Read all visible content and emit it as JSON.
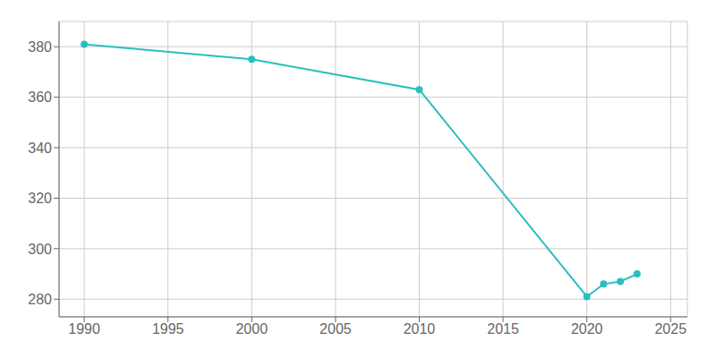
{
  "chart_data": {
    "type": "line",
    "x": [
      1990,
      2000,
      2010,
      2020,
      2021,
      2022,
      2023
    ],
    "values": [
      381,
      375,
      363,
      281,
      286,
      287,
      290
    ],
    "color": "#29BFBF",
    "marker": "circle",
    "xlim": [
      1988.5,
      2026
    ],
    "ylim": [
      273,
      390
    ],
    "xticks": [
      1990,
      1995,
      2000,
      2005,
      2010,
      2015,
      2020,
      2025
    ],
    "yticks": [
      280,
      300,
      320,
      340,
      360,
      380
    ],
    "grid": true
  }
}
